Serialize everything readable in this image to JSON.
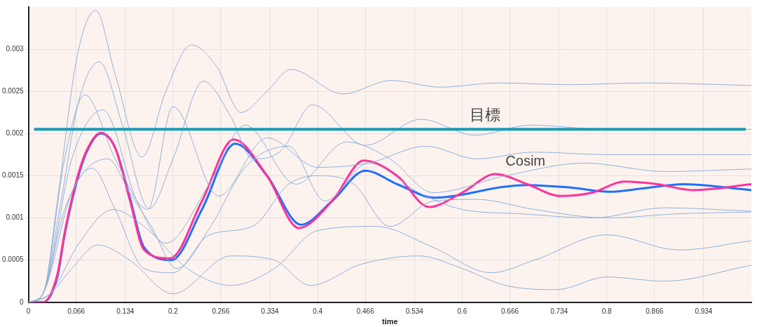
{
  "chart_data": {
    "type": "line",
    "xlabel": "time",
    "xlim": [
      0,
      1
    ],
    "xticks": [
      0,
      0.066,
      0.134,
      0.2,
      0.266,
      0.334,
      0.4,
      0.466,
      0.534,
      0.6,
      0.666,
      0.734,
      0.8,
      0.866,
      0.934
    ],
    "ylim": [
      0,
      0.0035
    ],
    "yticks": [
      0,
      0.0005,
      0.001,
      0.0015,
      0.002,
      0.0025,
      0.003
    ],
    "grid": true,
    "legend": false,
    "marker": "none",
    "line_style": "solid",
    "ref_lines": [
      {
        "axis": "y",
        "value": 0.00205,
        "label": "目標",
        "color": "#1a9bb5"
      }
    ],
    "series": [
      {
        "color": "#8fb0dc",
        "x": [
          0,
          0.02,
          0.04,
          0.067,
          0.093,
          0.12,
          0.157,
          0.19,
          0.225,
          0.26,
          0.294,
          0.33,
          0.363,
          0.435,
          0.502,
          0.569,
          0.65,
          0.75,
          0.85,
          1.0
        ],
        "values": [
          0,
          0.0001,
          0.0012,
          0.0029,
          0.00346,
          0.0027,
          0.00172,
          0.0025,
          0.00305,
          0.0028,
          0.00225,
          0.0025,
          0.00276,
          0.00247,
          0.00263,
          0.00255,
          0.0026,
          0.00258,
          0.0026,
          0.00257
        ]
      },
      {
        "color": "#8fb0dc",
        "x": [
          0,
          0.02,
          0.045,
          0.07,
          0.098,
          0.13,
          0.167,
          0.2,
          0.242,
          0.28,
          0.31,
          0.35,
          0.393,
          0.466,
          0.543,
          0.617,
          0.694,
          0.8,
          1.0
        ],
        "values": [
          0,
          0.0001,
          0.0012,
          0.0024,
          0.00285,
          0.0021,
          0.00111,
          0.0017,
          0.00262,
          0.0022,
          0.0017,
          0.0018,
          0.00234,
          0.00186,
          0.00217,
          0.00198,
          0.0021,
          0.00205,
          0.00205
        ]
      },
      {
        "color": "#8fb0dc",
        "x": [
          0,
          0.02,
          0.05,
          0.078,
          0.12,
          0.165,
          0.2,
          0.263,
          0.33,
          0.4,
          0.47,
          0.55,
          0.62,
          0.7,
          0.8,
          1.0
        ],
        "values": [
          0,
          0.0001,
          0.0017,
          0.00246,
          0.0017,
          0.0011,
          0.00232,
          0.00126,
          0.00195,
          0.0016,
          0.00165,
          0.00185,
          0.0017,
          0.00178,
          0.00175,
          0.00175
        ]
      },
      {
        "color": "#8fb0dc",
        "x": [
          0,
          0.02,
          0.06,
          0.103,
          0.15,
          0.19,
          0.25,
          0.3,
          0.37,
          0.44,
          0.5,
          0.56,
          0.66,
          0.77,
          0.88,
          1.0
        ],
        "values": [
          0,
          0.0001,
          0.0017,
          0.00228,
          0.0012,
          0.0007,
          0.0014,
          0.0021,
          0.0014,
          0.0019,
          0.0017,
          0.0013,
          0.0015,
          0.00165,
          0.00155,
          0.00158
        ]
      },
      {
        "color": "#8fb0dc",
        "x": [
          0,
          0.02,
          0.06,
          0.11,
          0.14,
          0.17,
          0.205,
          0.25,
          0.3,
          0.36,
          0.41,
          0.47,
          0.54,
          0.6,
          0.68,
          0.78,
          0.88,
          1.0
        ],
        "values": [
          0,
          0.0001,
          0.0013,
          0.0017,
          0.0013,
          0.0009,
          0.0004,
          0.00087,
          0.0016,
          0.00185,
          0.0012,
          0.00165,
          0.0013,
          0.0011,
          0.00105,
          0.001,
          0.00112,
          0.00108
        ]
      },
      {
        "color": "#8fb0dc",
        "x": [
          0,
          0.02,
          0.05,
          0.088,
          0.12,
          0.16,
          0.2,
          0.25,
          0.31,
          0.36,
          0.4,
          0.45,
          0.5,
          0.56,
          0.62,
          0.7,
          0.8,
          0.9,
          1.0
        ],
        "values": [
          0,
          0.0001,
          0.0011,
          0.00159,
          0.0011,
          0.0004,
          0.00035,
          0.0008,
          0.0009,
          0.0014,
          0.0015,
          0.0014,
          0.0009,
          0.0012,
          0.00122,
          0.0011,
          0.001,
          0.00105,
          0.00107
        ]
      },
      {
        "color": "#8fb0dc",
        "x": [
          0,
          0.03,
          0.07,
          0.117,
          0.16,
          0.22,
          0.28,
          0.34,
          0.4,
          0.48,
          0.56,
          0.64,
          0.7,
          0.8,
          0.9,
          1.0
        ],
        "values": [
          0,
          0.0001,
          0.0007,
          0.0011,
          0.0009,
          0.0004,
          0.0002,
          0.0004,
          0.00085,
          0.0009,
          0.00065,
          0.00035,
          0.0005,
          0.0008,
          0.00062,
          0.00073
        ]
      },
      {
        "color": "#8fb0dc",
        "x": [
          0,
          0.03,
          0.06,
          0.096,
          0.14,
          0.2,
          0.28,
          0.34,
          0.39,
          0.46,
          0.54,
          0.6,
          0.66,
          0.73,
          0.8,
          0.88,
          1.0
        ],
        "values": [
          0,
          0.0001,
          0.0004,
          0.00068,
          0.0005,
          0.0001,
          0.00055,
          0.0005,
          0.0002,
          0.00045,
          0.00055,
          0.0004,
          0.0002,
          0.00015,
          0.0003,
          0.00025,
          0.00044
        ]
      },
      {
        "name": "Cosim",
        "color": "#ff3399",
        "x": [
          0,
          0.02,
          0.04,
          0.05,
          0.066,
          0.08,
          0.1,
          0.12,
          0.14,
          0.16,
          0.196,
          0.24,
          0.284,
          0.33,
          0.374,
          0.42,
          0.464,
          0.51,
          0.554,
          0.6,
          0.646,
          0.69,
          0.736,
          0.78,
          0.824,
          0.87,
          0.919,
          1.0
        ],
        "values": [
          0,
          0,
          0.00033,
          0.00082,
          0.00143,
          0.00179,
          0.00201,
          0.00183,
          0.00122,
          0.00062,
          0.00052,
          0.0012,
          0.00193,
          0.0015,
          0.00088,
          0.0012,
          0.00168,
          0.0015,
          0.00113,
          0.0013,
          0.00152,
          0.0014,
          0.00126,
          0.0013,
          0.00143,
          0.0014,
          0.00133,
          0.0014
        ]
      },
      {
        "color": "#1f6fff",
        "x": [
          0,
          0.02,
          0.04,
          0.05,
          0.066,
          0.08,
          0.1,
          0.12,
          0.14,
          0.16,
          0.198,
          0.24,
          0.286,
          0.33,
          0.377,
          0.42,
          0.466,
          0.51,
          0.562,
          0.659,
          0.688,
          0.75,
          0.803,
          0.85,
          0.906,
          1.0
        ],
        "values": [
          0,
          0,
          0.0003,
          0.0008,
          0.0014,
          0.00177,
          0.002,
          0.00183,
          0.00125,
          0.00065,
          0.0005,
          0.0011,
          0.00188,
          0.0015,
          0.00092,
          0.0012,
          0.00156,
          0.0014,
          0.00124,
          0.00137,
          0.00139,
          0.00136,
          0.00131,
          0.00135,
          0.0014,
          0.00133
        ]
      }
    ]
  }
}
